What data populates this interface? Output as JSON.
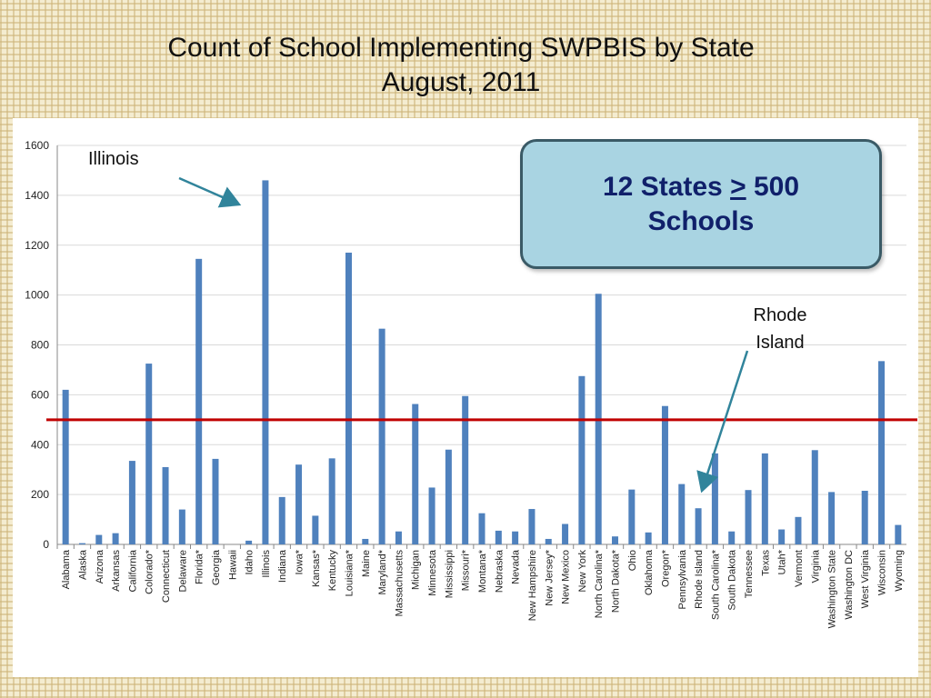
{
  "title": {
    "line1": "Count of School Implementing SWPBIS by State",
    "line2": "August, 2011"
  },
  "callout": {
    "line1_pre": "12 States ",
    "symbol": ">",
    "line1_post": " 500",
    "line2": "Schools"
  },
  "annotations": {
    "illinois": "Illinois",
    "rhode_island_line1": "Rhode",
    "rhode_island_line2": "Island"
  },
  "colors": {
    "bar": "#4f81bd",
    "threshold": "#c00000",
    "arrow": "#31849b",
    "grid": "#d9d9d9"
  },
  "chart_data": {
    "type": "bar",
    "title": "",
    "xlabel": "",
    "ylabel": "",
    "ylim": [
      0,
      1600
    ],
    "yticks": [
      0,
      200,
      400,
      600,
      800,
      1000,
      1200,
      1400,
      1600
    ],
    "grid": true,
    "threshold": 500,
    "categories": [
      "Alabama",
      "Alaska",
      "Arizona",
      "Arkansas",
      "California",
      "Colorado*",
      "Connecticut",
      "Delaware",
      "Florida*",
      "Georgia",
      "Hawaii",
      "Idaho",
      "Illinois",
      "Indiana",
      "Iowa*",
      "Kansas*",
      "Kentucky",
      "Louisiana*",
      "Maine",
      "Maryland*",
      "Massachusetts",
      "Michigan",
      "Minnesota",
      "Mississippi",
      "Missouri*",
      "Montana*",
      "Nebraska",
      "Nevada",
      "New Hampshire",
      "New Jersey*",
      "New Mexico",
      "New York",
      "North Carolina*",
      "North Dakota*",
      "Ohio",
      "Oklahoma",
      "Oregon*",
      "Pennsylvania",
      "Rhode Island",
      "South Carolina*",
      "South Dakota",
      "Tennessee",
      "Texas",
      "Utah*",
      "Vermont",
      "Virginia",
      "Washington State",
      "Washington DC",
      "West Virginia",
      "Wisconsin",
      "Wyoming"
    ],
    "values": [
      620,
      5,
      38,
      45,
      335,
      725,
      310,
      140,
      1145,
      343,
      0,
      15,
      1460,
      190,
      320,
      115,
      345,
      1170,
      22,
      865,
      52,
      563,
      228,
      380,
      595,
      125,
      55,
      52,
      142,
      22,
      82,
      675,
      1005,
      32,
      220,
      48,
      555,
      242,
      145,
      365,
      52,
      218,
      365,
      60,
      110,
      378,
      210,
      0,
      215,
      735,
      78
    ]
  }
}
